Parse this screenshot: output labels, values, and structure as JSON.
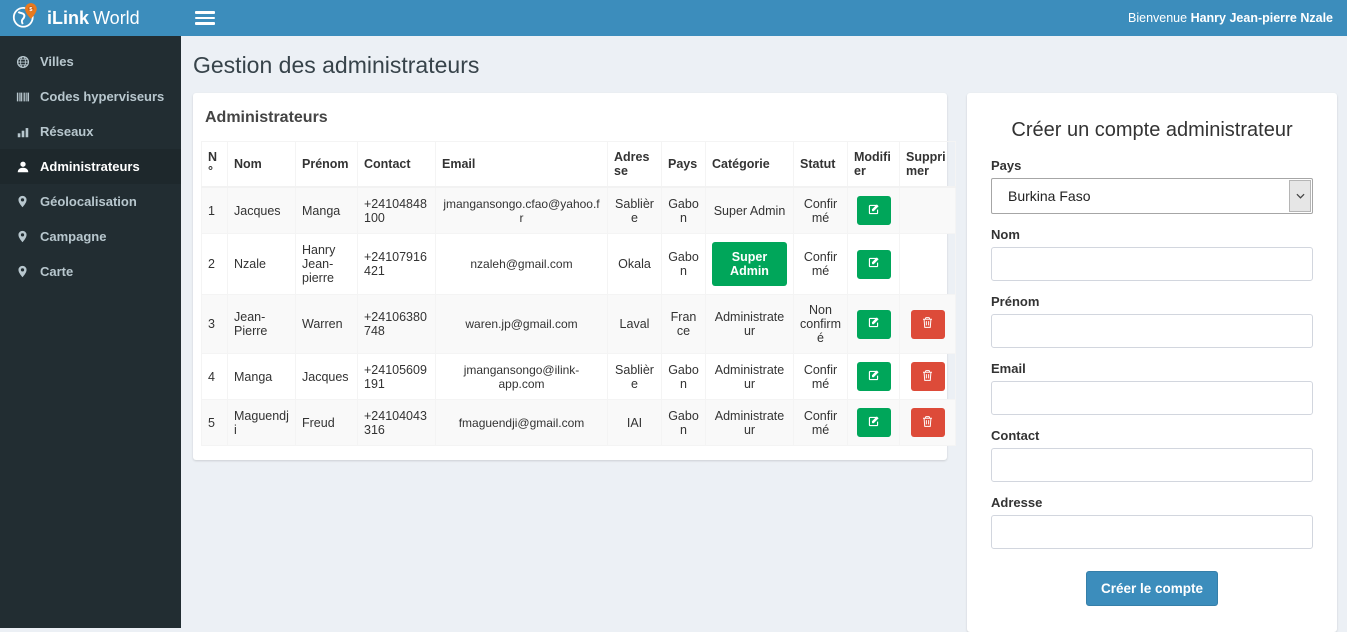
{
  "colors": {
    "header_bg": "#3c8dbc",
    "sidebar_bg": "#222d32",
    "sidebar_active_bg": "#1e282c",
    "sidebar_text": "#b8c7ce",
    "content_bg": "#ecf0f5",
    "success": "#00a65a",
    "danger": "#dd4b39",
    "primary": "#3c8dbc"
  },
  "header": {
    "brand_bold": "iLink",
    "brand_rest": "World",
    "welcome_prefix": "Bienvenue ",
    "welcome_name": "Hanry Jean-pierre Nzale"
  },
  "sidebar": {
    "items": [
      {
        "label": "Villes",
        "icon": "globe-icon",
        "active": false
      },
      {
        "label": "Codes hyperviseurs",
        "icon": "barcode-icon",
        "active": false
      },
      {
        "label": "Réseaux",
        "icon": "bar-chart-icon",
        "active": false
      },
      {
        "label": "Administrateurs",
        "icon": "user-icon",
        "active": true
      },
      {
        "label": "Géolocalisation",
        "icon": "map-marker-icon",
        "active": false
      },
      {
        "label": "Campagne",
        "icon": "map-marker-icon",
        "active": false
      },
      {
        "label": "Carte",
        "icon": "map-marker-icon",
        "active": false
      }
    ]
  },
  "page": {
    "title": "Gestion des administrateurs"
  },
  "admin_panel": {
    "title": "Administrateurs",
    "columns": [
      "N°",
      "Nom",
      "Prénom",
      "Contact",
      "Email",
      "Adresse",
      "Pays",
      "Catégorie",
      "Statut",
      "Modifier",
      "Supprimer"
    ],
    "rows": [
      {
        "n": "1",
        "nom": "Jacques",
        "prenom": "Manga",
        "contact": "+24104848100",
        "email": "jmangansongo.cfao@yahoo.fr",
        "adresse": "Sablière",
        "pays": "Gabon",
        "categorie": "Super Admin",
        "categorie_as_button": false,
        "statut": "Confirmé",
        "has_delete": false
      },
      {
        "n": "2",
        "nom": "Nzale",
        "prenom": "Hanry Jean-pierre",
        "contact": "+24107916421",
        "email": "nzaleh@gmail.com",
        "adresse": "Okala",
        "pays": "Gabon",
        "categorie": "Super Admin",
        "categorie_as_button": true,
        "statut": "Confirmé",
        "has_delete": false
      },
      {
        "n": "3",
        "nom": "Jean-Pierre",
        "prenom": "Warren",
        "contact": "+24106380748",
        "email": "waren.jp@gmail.com",
        "adresse": "Laval",
        "pays": "France",
        "categorie": "Administrateur",
        "categorie_as_button": false,
        "statut": "Non confirmé",
        "has_delete": true
      },
      {
        "n": "4",
        "nom": "Manga",
        "prenom": "Jacques",
        "contact": "+24105609191",
        "email": "jmangansongo@ilink-app.com",
        "adresse": "Sablière",
        "pays": "Gabon",
        "categorie": "Administrateur",
        "categorie_as_button": false,
        "statut": "Confirmé",
        "has_delete": true
      },
      {
        "n": "5",
        "nom": "Maguendji",
        "prenom": "Freud",
        "contact": "+24104043316",
        "email": "fmaguendji@gmail.com",
        "adresse": "IAI",
        "pays": "Gabon",
        "categorie": "Administrateur",
        "categorie_as_button": false,
        "statut": "Confirmé",
        "has_delete": true
      }
    ],
    "edit_icon": "edit-icon",
    "delete_icon": "trash-icon"
  },
  "form": {
    "title": "Créer un compte administrateur",
    "fields": [
      {
        "label": "Pays",
        "type": "select",
        "value": "Burkina Faso",
        "name": "pays"
      },
      {
        "label": "Nom",
        "type": "text",
        "value": "",
        "placeholder": "",
        "name": "nom"
      },
      {
        "label": "Prénom",
        "type": "text",
        "value": "",
        "placeholder": "",
        "name": "prenom"
      },
      {
        "label": "Email",
        "type": "text",
        "value": "",
        "placeholder": "",
        "name": "email"
      },
      {
        "label": "Contact",
        "type": "text",
        "value": "",
        "placeholder": "",
        "name": "contact"
      },
      {
        "label": "Adresse",
        "type": "text",
        "value": "",
        "placeholder": "",
        "name": "adresse"
      }
    ],
    "submit_label": "Créer le compte"
  }
}
